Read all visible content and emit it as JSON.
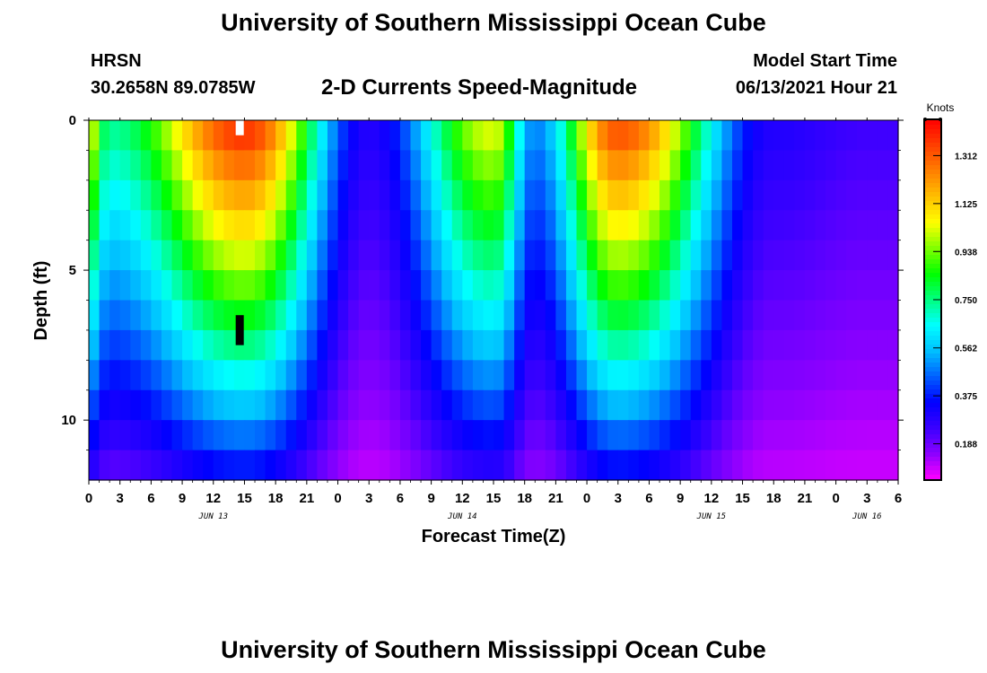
{
  "header": {
    "title": "University of Southern Mississippi Ocean Cube",
    "station": "HRSN",
    "coords": "30.2658N  89.0785W",
    "subtitle": "2-D Currents Speed-Magnitude",
    "model_label": "Model Start Time",
    "model_time": "06/13/2021 Hour 21"
  },
  "footer": {
    "title": "University of Southern Mississippi Ocean Cube"
  },
  "chart_data": {
    "type": "heatmap",
    "title": "2-D Currents Speed-Magnitude",
    "xlabel": "Forecast Time(Z)",
    "ylabel": "Depth (ft)",
    "x_ticks": [
      "0",
      "3",
      "6",
      "9",
      "12",
      "15",
      "18",
      "21",
      "0",
      "3",
      "6",
      "9",
      "12",
      "15",
      "18",
      "21",
      "0",
      "3",
      "6",
      "9",
      "12",
      "15",
      "18",
      "21",
      "0",
      "3",
      "6"
    ],
    "x_range_hours": [
      0,
      78
    ],
    "date_labels": [
      {
        "label": "JUN 13",
        "hour": 12
      },
      {
        "label": "JUN 14",
        "hour": 36
      },
      {
        "label": "JUN 15",
        "hour": 60
      },
      {
        "label": "JUN 16",
        "hour": 75
      }
    ],
    "y_ticks": [
      "0",
      "5",
      "10"
    ],
    "y_range": [
      0,
      12
    ],
    "y_inverted": true,
    "colorbar": {
      "unit": "Knots",
      "range": [
        0.05,
        1.45
      ],
      "ticks": [
        "1.312",
        "1.125",
        "0.938",
        "0.750",
        "0.562",
        "0.375",
        "0.188"
      ],
      "colors": [
        "#ff00ff",
        "#8a00ff",
        "#3a00ff",
        "#0000ff",
        "#0060ff",
        "#00c0ff",
        "#00ffff",
        "#00ff80",
        "#00ff00",
        "#80ff00",
        "#ffff00",
        "#ffc000",
        "#ff8000",
        "#ff4000",
        "#ff0000"
      ]
    },
    "depths_ft": [
      0.5,
      1.5,
      2.5,
      3.5,
      4.5,
      5.5,
      6.5,
      7.5,
      8.5,
      9.5,
      10.5,
      11.5
    ],
    "surface_speed_peaks": [
      {
        "hour": 0,
        "speed": 1.0
      },
      {
        "hour": 2,
        "speed": 0.7
      },
      {
        "hour": 15,
        "speed": 1.35
      },
      {
        "hour": 27,
        "speed": 0.25
      },
      {
        "hour": 39,
        "speed": 1.0
      },
      {
        "hour": 43,
        "speed": 0.45
      },
      {
        "hour": 51,
        "speed": 1.3
      },
      {
        "hour": 66,
        "speed": 0.25
      },
      {
        "hour": 75,
        "speed": 0.2
      }
    ],
    "nodata_cells": [
      {
        "hour": 14.5,
        "depth": 0.25,
        "color": "#ffffff"
      },
      {
        "hour": 14.5,
        "depth": 7.0,
        "color": "#000000"
      }
    ]
  }
}
